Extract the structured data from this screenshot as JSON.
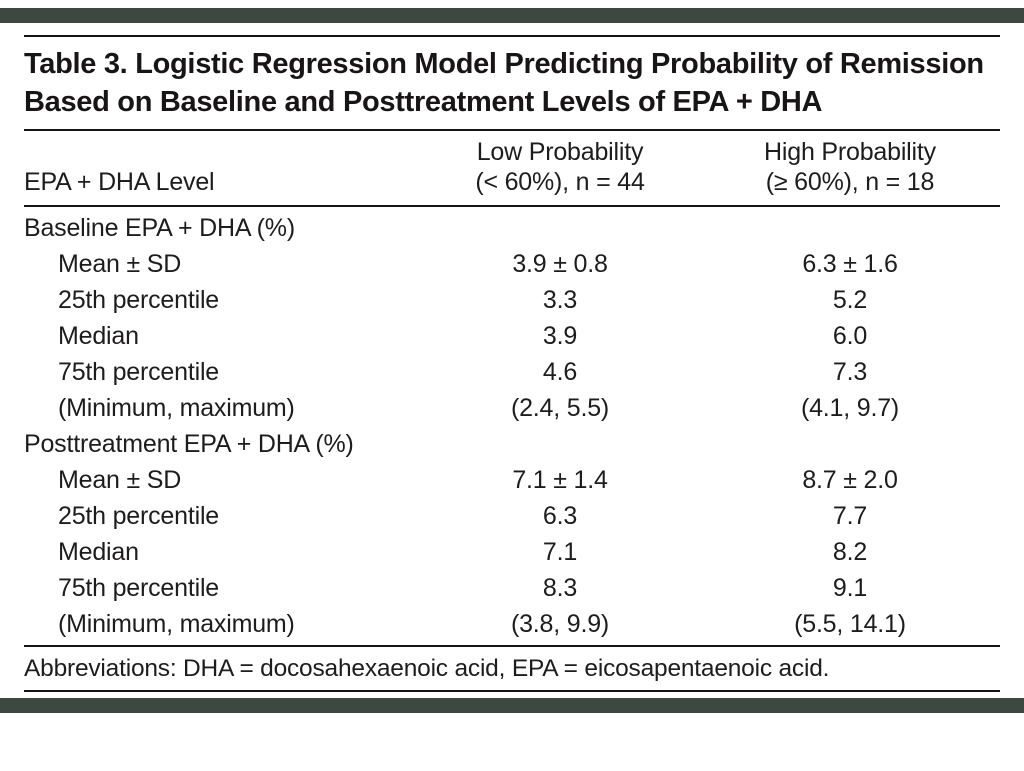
{
  "page": {
    "accent_bar_color": "#3e4843",
    "background_color": "#ffffff",
    "text_color": "#1e1c1d"
  },
  "table": {
    "title": "Table 3. Logistic Regression Model Predicting Probability of Remission Based on Baseline and Posttreatment Levels of EPA + DHA",
    "columns": [
      {
        "label": "EPA + DHA Level"
      },
      {
        "line1": "Low Probability",
        "line2": "(< 60%), n = 44"
      },
      {
        "line1": "High Probability",
        "line2": "(≥ 60%), n = 18"
      }
    ],
    "rows": [
      {
        "label": "Baseline EPA + DHA (%)",
        "low": "",
        "high": ""
      },
      {
        "label": "Mean ± SD",
        "low": "3.9 ± 0.8",
        "high": "6.3 ± 1.6"
      },
      {
        "label": "25th percentile",
        "low": "3.3",
        "high": "5.2"
      },
      {
        "label": "Median",
        "low": "3.9",
        "high": "6.0"
      },
      {
        "label": "75th percentile",
        "low": "4.6",
        "high": "7.3"
      },
      {
        "label": "(Minimum, maximum)",
        "low": "(2.4, 5.5)",
        "high": "(4.1, 9.7)"
      },
      {
        "label": "Posttreatment EPA + DHA (%)",
        "low": "",
        "high": ""
      },
      {
        "label": "Mean ± SD",
        "low": "7.1 ± 1.4",
        "high": "8.7 ± 2.0"
      },
      {
        "label": "25th percentile",
        "low": "6.3",
        "high": "7.7"
      },
      {
        "label": "Median",
        "low": "7.1",
        "high": "8.2"
      },
      {
        "label": "75th percentile",
        "low": "8.3",
        "high": "9.1"
      },
      {
        "label": "(Minimum, maximum)",
        "low": "(3.8, 9.9)",
        "high": "(5.5, 14.1)"
      }
    ],
    "footnote": "Abbreviations: DHA = docosahexaenoic acid, EPA = eicosapentaenoic acid."
  }
}
